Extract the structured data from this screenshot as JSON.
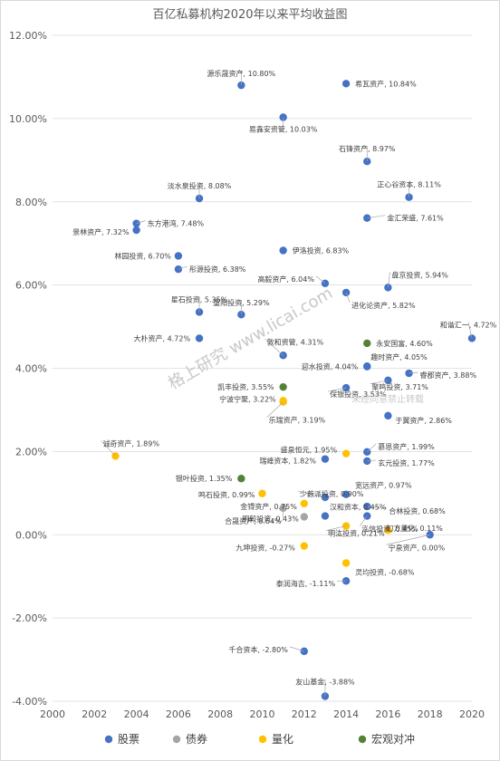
{
  "chart_data": {
    "type": "scatter",
    "title": "百亿私募机构2020年以来平均收益图",
    "xlim": [
      2000,
      2020
    ],
    "ylim": [
      -4,
      12
    ],
    "x_ticks": [
      "2000",
      "2002",
      "2004",
      "2006",
      "2008",
      "2010",
      "2012",
      "2014",
      "2016",
      "2018",
      "2020"
    ],
    "y_ticks": [
      "-4.00%",
      "-2.00%",
      "0.00%",
      "2.00%",
      "4.00%",
      "6.00%",
      "8.00%",
      "10.00%",
      "12.00%"
    ],
    "grid": "horizontal",
    "legend_position": "bottom",
    "series": [
      {
        "name": "股票",
        "color": "#4472c4",
        "points": [
          {
            "x": 2009,
            "y": 10.8,
            "label": "源乐晟资产, 10.80%"
          },
          {
            "x": 2014,
            "y": 10.84,
            "label": "希瓦资产, 10.84%"
          },
          {
            "x": 2011,
            "y": 10.03,
            "label": "易鑫安资管, 10.03%"
          },
          {
            "x": 2015,
            "y": 8.97,
            "label": "石锋资产, 8.97%"
          },
          {
            "x": 2017,
            "y": 8.11,
            "label": "正心谷资本, 8.11%"
          },
          {
            "x": 2007,
            "y": 8.08,
            "label": "淡水泉投资, 8.08%"
          },
          {
            "x": 2015,
            "y": 7.61,
            "label": "金汇荣盛, 7.61%"
          },
          {
            "x": 2004,
            "y": 7.48,
            "label": "东方港湾, 7.48%"
          },
          {
            "x": 2004,
            "y": 7.32,
            "label": "景林资产, 7.32%"
          },
          {
            "x": 2011,
            "y": 6.83,
            "label": "伊洛投资, 6.83%"
          },
          {
            "x": 2006,
            "y": 6.7,
            "label": "林园投资, 6.70%"
          },
          {
            "x": 2006,
            "y": 6.38,
            "label": "彤源投资, 6.38%"
          },
          {
            "x": 2013,
            "y": 6.04,
            "label": "高毅资产, 6.04%"
          },
          {
            "x": 2016,
            "y": 5.94,
            "label": "盘京投资, 5.94%"
          },
          {
            "x": 2014,
            "y": 5.82,
            "label": "进化论资产, 5.82%"
          },
          {
            "x": 2007,
            "y": 5.35,
            "label": "星石投资, 5.35%"
          },
          {
            "x": 2009,
            "y": 5.29,
            "label": "重阳投资, 5.29%"
          },
          {
            "x": 2020,
            "y": 4.72,
            "label": "和谐汇一, 4.72%"
          },
          {
            "x": 2007,
            "y": 4.72,
            "label": "大朴资产, 4.72%"
          },
          {
            "x": 2011,
            "y": 4.31,
            "label": "敦和资管, 4.31%"
          },
          {
            "x": 2015,
            "y": 4.05,
            "label": "趣时资产, 4.05%"
          },
          {
            "x": 2015,
            "y": 4.04,
            "label": "迎水投资, 4.04%"
          },
          {
            "x": 2017,
            "y": 3.88,
            "label": "睿郡资产, 3.88%"
          },
          {
            "x": 2016,
            "y": 3.71,
            "label": "聚鸣投资, 3.71%"
          },
          {
            "x": 2014,
            "y": 3.53,
            "label": "保银投资, 3.53%"
          },
          {
            "x": 2016,
            "y": 2.86,
            "label": "于翼资产, 2.86%"
          },
          {
            "x": 2015,
            "y": 1.99,
            "label": "慕恩资产, 1.99%"
          },
          {
            "x": 2013,
            "y": 1.82,
            "label": "瑞峰资本, 1.82%"
          },
          {
            "x": 2015,
            "y": 1.77,
            "label": "玄元投资, 1.77%"
          },
          {
            "x": 2013,
            "y": 0.9,
            "label": "少薮派投资, 0.90%"
          },
          {
            "x": 2014,
            "y": 0.97,
            "label": "宽远资产, 0.97%"
          },
          {
            "x": 2015,
            "y": 0.68,
            "label": "合林投资, 0.68%"
          },
          {
            "x": 2013,
            "y": 0.45,
            "label": "汉和资本, 0.45%"
          },
          {
            "x": 2015,
            "y": 0.45,
            "label": "泓信投资, 0.45%"
          },
          {
            "x": 2018,
            "y": 0.0,
            "label": "宁泉资产, 0.00%"
          },
          {
            "x": 2014,
            "y": -1.11,
            "label": "泰润海吉, -1.11%"
          },
          {
            "x": 2012,
            "y": -2.8,
            "label": "千合资本, -2.80%"
          },
          {
            "x": 2013,
            "y": -3.88,
            "label": "友山基金, -3.88%"
          }
        ]
      },
      {
        "name": "债券",
        "color": "#a5a5a5",
        "points": [
          {
            "x": 2011,
            "y": 0.64,
            "label": "合晟资产, 0.64%"
          },
          {
            "x": 2012,
            "y": 0.43,
            "label": "明毅投资, 0.43%"
          }
        ]
      },
      {
        "name": "量化",
        "color": "#ffc000",
        "points": [
          {
            "x": 2011,
            "y": 3.22,
            "label": "宁波宁聚, 3.22%"
          },
          {
            "x": 2011,
            "y": 3.19,
            "label": "乐瑞资产, 3.19%"
          },
          {
            "x": 2003,
            "y": 1.89,
            "label": "诚奇资产, 1.89%"
          },
          {
            "x": 2014,
            "y": 1.95,
            "label": "盛泉恒元, 1.95%"
          },
          {
            "x": 2010,
            "y": 0.99,
            "label": "鸣石投资, 0.99%"
          },
          {
            "x": 2012,
            "y": 0.75,
            "label": "金锝资产, 0.75%"
          },
          {
            "x": 2014,
            "y": 0.21,
            "label": "明汯投资, 0.21%"
          },
          {
            "x": 2016,
            "y": 0.11,
            "label": "幻方量化, 0.11%"
          },
          {
            "x": 2012,
            "y": -0.27,
            "label": "九坤投资, -0.27%"
          },
          {
            "x": 2014,
            "y": -0.68,
            "label": "灵均投资, -0.68%"
          }
        ]
      },
      {
        "name": "宏观对冲",
        "color": "#548235",
        "points": [
          {
            "x": 2015,
            "y": 4.6,
            "label": "永安国富, 4.60%"
          },
          {
            "x": 2011,
            "y": 3.55,
            "label": "凯丰投资, 3.55%"
          },
          {
            "x": 2009,
            "y": 1.35,
            "label": "银叶投资, 1.35%"
          }
        ]
      }
    ]
  },
  "watermarks": [
    "格上研究 www.licai.com",
    "未经同意禁止转载"
  ]
}
